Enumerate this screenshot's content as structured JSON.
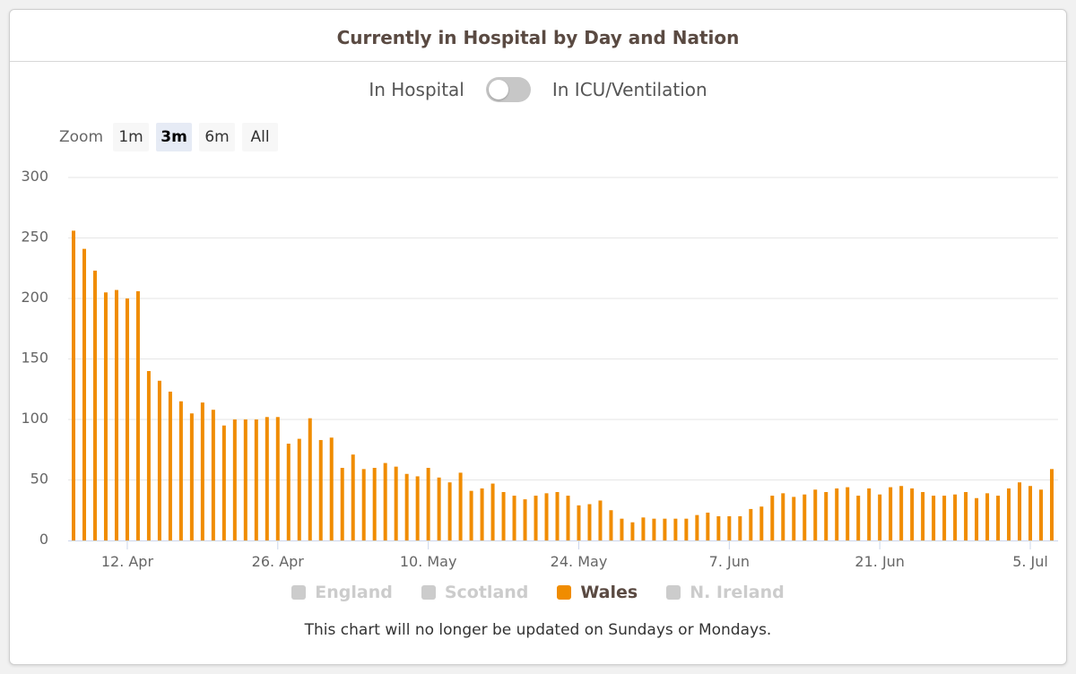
{
  "title": "Currently in Hospital by Day and Nation",
  "toggle": {
    "left_label": "In Hospital",
    "right_label": "In ICU/Ventilation",
    "state": "off"
  },
  "zoom": {
    "label": "Zoom",
    "buttons": [
      "1m",
      "3m",
      "6m",
      "All"
    ],
    "active": "3m"
  },
  "legend": [
    {
      "name": "England",
      "color": "#cccccc",
      "visible": false
    },
    {
      "name": "Scotland",
      "color": "#cccccc",
      "visible": false
    },
    {
      "name": "Wales",
      "color": "#f08c00",
      "visible": true
    },
    {
      "name": "N. Ireland",
      "color": "#cccccc",
      "visible": false
    }
  ],
  "footnote": "This chart will no longer be updated on Sundays or Mondays.",
  "colors": {
    "bar": "#f08c00",
    "grid": "#e6e6e6",
    "axis": "#ccd6eb",
    "text": "#5a4a42"
  },
  "chart_data": {
    "type": "bar",
    "series": [
      {
        "name": "Wales",
        "values": [
          256,
          241,
          223,
          205,
          207,
          200,
          206,
          140,
          132,
          123,
          115,
          105,
          114,
          108,
          95,
          100,
          100,
          100,
          102,
          102,
          80,
          84,
          101,
          83,
          85,
          60,
          71,
          59,
          60,
          64,
          61,
          55,
          53,
          60,
          52,
          48,
          56,
          41,
          43,
          47,
          40,
          37,
          34,
          37,
          39,
          40,
          37,
          29,
          30,
          33,
          25,
          18,
          15,
          19,
          18,
          18,
          18,
          18,
          21,
          23,
          20,
          20,
          20,
          26,
          28,
          37,
          39,
          36,
          38,
          42,
          40,
          43,
          44,
          37,
          43,
          38,
          44,
          45,
          43,
          40,
          37,
          37,
          38,
          40,
          35,
          39,
          37,
          43,
          48,
          45,
          42,
          59
        ]
      }
    ],
    "x_start": "2020-04-07",
    "x_ticks": [
      "12. Apr",
      "26. Apr",
      "10. May",
      "24. May",
      "7. Jun",
      "21. Jun",
      "5. Jul"
    ],
    "y_ticks": [
      0,
      50,
      100,
      150,
      200,
      250,
      300
    ],
    "ylim": [
      0,
      300
    ],
    "grid": true,
    "legend_position": "bottom"
  }
}
